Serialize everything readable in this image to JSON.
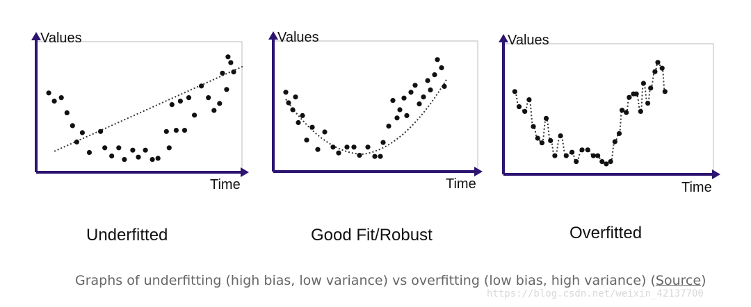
{
  "panels": [
    {
      "id": "underfitted",
      "title": "Underfitted",
      "ylabel": "Values",
      "xlabel": "Time",
      "points": [
        [
          0.06,
          0.62
        ],
        [
          0.1,
          0.55
        ],
        [
          0.15,
          0.58
        ],
        [
          0.19,
          0.45
        ],
        [
          0.23,
          0.34
        ],
        [
          0.26,
          0.2
        ],
        [
          0.3,
          0.28
        ],
        [
          0.35,
          0.11
        ],
        [
          0.43,
          0.29
        ],
        [
          0.46,
          0.15
        ],
        [
          0.51,
          0.08
        ],
        [
          0.56,
          0.15
        ],
        [
          0.6,
          0.05
        ],
        [
          0.66,
          0.13
        ],
        [
          0.7,
          0.07
        ],
        [
          0.75,
          0.13
        ],
        [
          0.8,
          0.05
        ],
        [
          0.84,
          0.06
        ],
        [
          0.9,
          0.29
        ],
        [
          0.92,
          0.15
        ],
        [
          0.94,
          0.52
        ],
        [
          0.97,
          0.3
        ],
        [
          1.0,
          0.55
        ],
        [
          1.03,
          0.3
        ],
        [
          1.06,
          0.58
        ],
        [
          1.1,
          0.43
        ],
        [
          1.15,
          0.68
        ],
        [
          1.2,
          0.58
        ],
        [
          1.24,
          0.47
        ],
        [
          1.28,
          0.53
        ],
        [
          1.3,
          0.79
        ],
        [
          1.33,
          0.65
        ],
        [
          1.36,
          0.88
        ],
        [
          1.38,
          0.8
        ],
        [
          1.34,
          0.93
        ]
      ],
      "fit_type": "linear"
    },
    {
      "id": "good-fit",
      "title": "Good Fit/Robust",
      "ylabel": "Values",
      "xlabel": "Time",
      "points": [
        [
          0.06,
          0.62
        ],
        [
          0.08,
          0.53
        ],
        [
          0.11,
          0.47
        ],
        [
          0.13,
          0.58
        ],
        [
          0.15,
          0.36
        ],
        [
          0.18,
          0.42
        ],
        [
          0.21,
          0.21
        ],
        [
          0.25,
          0.32
        ],
        [
          0.29,
          0.13
        ],
        [
          0.34,
          0.28
        ],
        [
          0.4,
          0.15
        ],
        [
          0.44,
          0.1
        ],
        [
          0.5,
          0.15
        ],
        [
          0.55,
          0.15
        ],
        [
          0.59,
          0.08
        ],
        [
          0.65,
          0.15
        ],
        [
          0.7,
          0.07
        ],
        [
          0.74,
          0.07
        ],
        [
          0.76,
          0.19
        ],
        [
          0.8,
          0.33
        ],
        [
          0.83,
          0.55
        ],
        [
          0.86,
          0.4
        ],
        [
          0.88,
          0.47
        ],
        [
          0.91,
          0.57
        ],
        [
          0.93,
          0.42
        ],
        [
          0.96,
          0.62
        ],
        [
          0.99,
          0.68
        ],
        [
          1.02,
          0.52
        ],
        [
          1.05,
          0.58
        ],
        [
          1.08,
          0.72
        ],
        [
          1.1,
          0.64
        ],
        [
          1.13,
          0.77
        ],
        [
          1.15,
          0.9
        ],
        [
          1.18,
          0.83
        ],
        [
          1.2,
          0.67
        ]
      ],
      "fit_type": "quadratic"
    },
    {
      "id": "overfitted",
      "title": "Overfitted",
      "ylabel": "Values",
      "xlabel": "Time",
      "points": [
        [
          0.05,
          0.65
        ],
        [
          0.08,
          0.52
        ],
        [
          0.12,
          0.48
        ],
        [
          0.15,
          0.58
        ],
        [
          0.18,
          0.35
        ],
        [
          0.21,
          0.25
        ],
        [
          0.24,
          0.21
        ],
        [
          0.27,
          0.42
        ],
        [
          0.3,
          0.23
        ],
        [
          0.33,
          0.1
        ],
        [
          0.37,
          0.27
        ],
        [
          0.41,
          0.1
        ],
        [
          0.45,
          0.13
        ],
        [
          0.48,
          0.05
        ],
        [
          0.52,
          0.15
        ],
        [
          0.56,
          0.15
        ],
        [
          0.6,
          0.1
        ],
        [
          0.63,
          0.1
        ],
        [
          0.66,
          0.05
        ],
        [
          0.69,
          0.03
        ],
        [
          0.72,
          0.05
        ],
        [
          0.75,
          0.22
        ],
        [
          0.78,
          0.29
        ],
        [
          0.8,
          0.49
        ],
        [
          0.83,
          0.47
        ],
        [
          0.85,
          0.6
        ],
        [
          0.88,
          0.63
        ],
        [
          0.9,
          0.63
        ],
        [
          0.93,
          0.48
        ],
        [
          0.95,
          0.72
        ],
        [
          0.98,
          0.55
        ],
        [
          1.0,
          0.68
        ],
        [
          1.03,
          0.82
        ],
        [
          1.05,
          0.9
        ],
        [
          1.08,
          0.85
        ],
        [
          1.1,
          0.65
        ]
      ],
      "fit_type": "overfit"
    }
  ],
  "caption": {
    "text": "Graphs of underfitting (high bias, low variance) vs overfitting (low bias, high variance) (",
    "source_label": "Source",
    "close": ")"
  },
  "watermark": "https://blog.csdn.net/weixin_42137700",
  "colors": {
    "axis": "#2d1470",
    "point": "#111111",
    "fit": "#333333",
    "box": "#c8c8c8"
  }
}
